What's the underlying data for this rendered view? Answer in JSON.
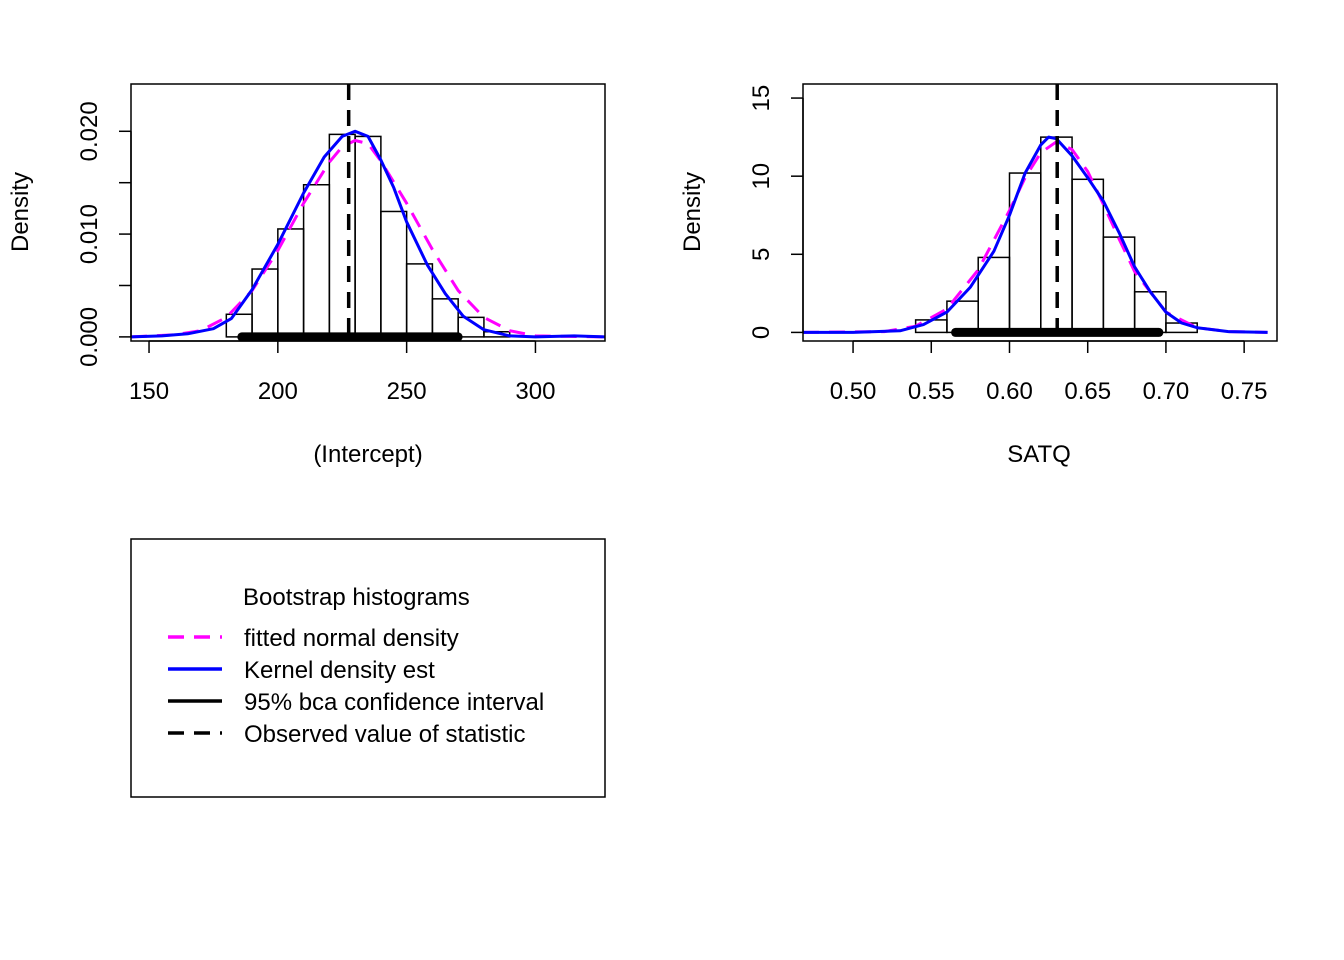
{
  "chart_data": [
    {
      "type": "histogram",
      "xlabel": "(Intercept)",
      "ylabel": "Density",
      "xlim": [
        143,
        327
      ],
      "ylim": [
        -0.0004,
        0.0246
      ],
      "xticks": [
        150,
        200,
        250,
        300
      ],
      "xtick_labels": [
        "150",
        "200",
        "250",
        "300"
      ],
      "yticks": [
        0.0,
        0.005,
        0.01,
        0.015,
        0.02
      ],
      "ytick_labels": [
        "0.000",
        "",
        "0.010",
        "",
        "0.020"
      ],
      "bins": [
        {
          "x0": 180,
          "x1": 190,
          "density": 0.0022
        },
        {
          "x0": 190,
          "x1": 200,
          "density": 0.0066
        },
        {
          "x0": 200,
          "x1": 210,
          "density": 0.0105
        },
        {
          "x0": 210,
          "x1": 220,
          "density": 0.0148
        },
        {
          "x0": 220,
          "x1": 230,
          "density": 0.0197
        },
        {
          "x0": 230,
          "x1": 240,
          "density": 0.0195
        },
        {
          "x0": 240,
          "x1": 250,
          "density": 0.0122
        },
        {
          "x0": 250,
          "x1": 260,
          "density": 0.0071
        },
        {
          "x0": 260,
          "x1": 270,
          "density": 0.0037
        },
        {
          "x0": 270,
          "x1": 280,
          "density": 0.0019
        },
        {
          "x0": 280,
          "x1": 290,
          "density": 0.0005
        }
      ],
      "series": [
        {
          "color": "#ff00ff",
          "style": "dashed",
          "x": [
            143,
            160,
            170,
            180,
            190,
            200,
            210,
            220,
            225,
            230,
            235,
            240,
            250,
            260,
            270,
            280,
            290,
            300,
            327
          ],
          "y": [
            0.0,
            0.0002,
            0.0006,
            0.0019,
            0.0045,
            0.0084,
            0.013,
            0.017,
            0.0185,
            0.0191,
            0.0188,
            0.0171,
            0.013,
            0.0085,
            0.0045,
            0.0019,
            0.0006,
            0.0001,
            0.0
          ]
        },
        {
          "color": "#0000ff",
          "style": "solid",
          "x": [
            143,
            155,
            165,
            175,
            182,
            190,
            200,
            210,
            218,
            225,
            230,
            235,
            240,
            245,
            250,
            258,
            265,
            272,
            280,
            290,
            300,
            315,
            327
          ],
          "y": [
            0.0,
            0.0001,
            0.0003,
            0.0008,
            0.0018,
            0.0046,
            0.009,
            0.014,
            0.0175,
            0.0195,
            0.02,
            0.0195,
            0.0172,
            0.0145,
            0.0112,
            0.007,
            0.0042,
            0.002,
            0.0007,
            0.0001,
            0.0,
            0.0001,
            0.0
          ]
        }
      ],
      "ci": [
        186,
        270
      ],
      "observed": 227.5
    },
    {
      "type": "histogram",
      "xlabel": "SATQ",
      "ylabel": "Density",
      "xlim": [
        0.468,
        0.771
      ],
      "ylim": [
        -0.55,
        15.9
      ],
      "xticks": [
        0.5,
        0.55,
        0.6,
        0.65,
        0.7,
        0.75
      ],
      "xtick_labels": [
        "0.50",
        "0.55",
        "0.60",
        "0.65",
        "0.70",
        "0.75"
      ],
      "yticks": [
        0,
        5,
        10,
        15
      ],
      "ytick_labels": [
        "0",
        "5",
        "10",
        "15"
      ],
      "bins": [
        {
          "x0": 0.54,
          "x1": 0.56,
          "density": 0.8
        },
        {
          "x0": 0.56,
          "x1": 0.58,
          "density": 2.0
        },
        {
          "x0": 0.58,
          "x1": 0.6,
          "density": 4.8
        },
        {
          "x0": 0.6,
          "x1": 0.62,
          "density": 10.2
        },
        {
          "x0": 0.62,
          "x1": 0.64,
          "density": 12.5
        },
        {
          "x0": 0.64,
          "x1": 0.66,
          "density": 9.8
        },
        {
          "x0": 0.66,
          "x1": 0.68,
          "density": 6.1
        },
        {
          "x0": 0.68,
          "x1": 0.7,
          "density": 2.6
        },
        {
          "x0": 0.7,
          "x1": 0.72,
          "density": 0.6
        }
      ],
      "series": [
        {
          "color": "#ff00ff",
          "style": "dashed",
          "x": [
            0.468,
            0.52,
            0.54,
            0.56,
            0.58,
            0.6,
            0.61,
            0.62,
            0.63,
            0.64,
            0.65,
            0.66,
            0.67,
            0.68,
            0.7,
            0.72,
            0.74,
            0.765
          ],
          "y": [
            0.0,
            0.05,
            0.4,
            1.5,
            4.0,
            7.8,
            9.9,
            11.5,
            12.2,
            11.7,
            10.3,
            8.2,
            6.0,
            3.9,
            1.3,
            0.3,
            0.05,
            0.0
          ]
        },
        {
          "color": "#0000ff",
          "style": "solid",
          "x": [
            0.468,
            0.5,
            0.53,
            0.545,
            0.56,
            0.575,
            0.59,
            0.6,
            0.61,
            0.62,
            0.625,
            0.63,
            0.64,
            0.65,
            0.66,
            0.67,
            0.68,
            0.69,
            0.7,
            0.71,
            0.72,
            0.74,
            0.765
          ],
          "y": [
            0.0,
            0.0,
            0.1,
            0.5,
            1.3,
            2.9,
            5.2,
            7.5,
            10.2,
            12.0,
            12.5,
            12.4,
            11.3,
            9.9,
            8.4,
            6.4,
            4.2,
            2.6,
            1.3,
            0.6,
            0.3,
            0.05,
            0.0
          ]
        }
      ],
      "ci": [
        0.5655,
        0.6955
      ],
      "observed": 0.6305
    }
  ],
  "legend": {
    "title": "Bootstrap histograms",
    "items": [
      {
        "label": "fitted normal density",
        "color": "#ff00ff",
        "style": "dashed"
      },
      {
        "label": "Kernel density est",
        "color": "#0000ff",
        "style": "solid"
      },
      {
        "label": "95% bca confidence interval",
        "color": "#000000",
        "style": "solid"
      },
      {
        "label": "Observed value of statistic",
        "color": "#000000",
        "style": "dashed"
      }
    ]
  }
}
